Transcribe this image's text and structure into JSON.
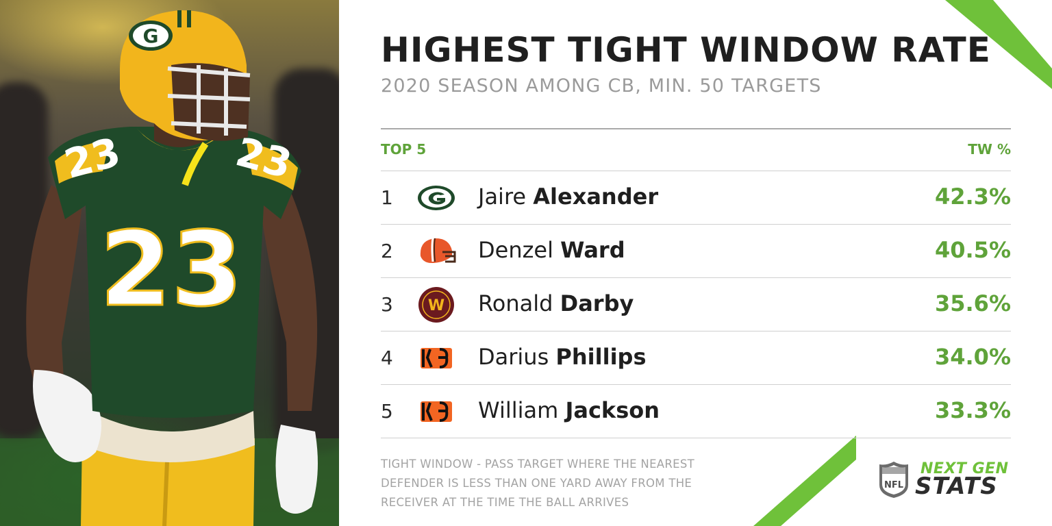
{
  "graphic": {
    "title": "HIGHEST TIGHT WINDOW RATE",
    "subtitle": "2020 SEASON AMONG CB, MIN. 50 TARGETS",
    "column_left": "TOP 5",
    "column_right": "TW %",
    "accent_color": "#5fa33a",
    "rows": [
      {
        "rank": "1",
        "team_logo": "green-bay-packers-logo",
        "first": "Jaire",
        "last": "Alexander",
        "pct": "42.3%"
      },
      {
        "rank": "2",
        "team_logo": "cleveland-browns-logo",
        "first": "Denzel",
        "last": "Ward",
        "pct": "40.5%"
      },
      {
        "rank": "3",
        "team_logo": "washington-football-team-logo",
        "first": "Ronald",
        "last": "Darby",
        "pct": "35.6%"
      },
      {
        "rank": "4",
        "team_logo": "cincinnati-bengals-logo",
        "first": "Darius",
        "last": "Phillips",
        "pct": "34.0%"
      },
      {
        "rank": "5",
        "team_logo": "cincinnati-bengals-logo",
        "first": "William",
        "last": "Jackson",
        "pct": "33.3%"
      }
    ],
    "footnote": "TIGHT WINDOW - PASS TARGET WHERE THE NEAREST DEFENDER IS LESS THAN ONE YARD AWAY FROM THE RECEIVER AT THE TIME THE BALL ARRIVES"
  },
  "photo": {
    "jersey_number": "23",
    "jersey_color": "#1f4a2a",
    "helmet_color": "#f2b51c"
  },
  "branding": {
    "nfl_shield_text": "NFL",
    "next_label": "NEXT GEN",
    "stats_label": "STATS"
  }
}
